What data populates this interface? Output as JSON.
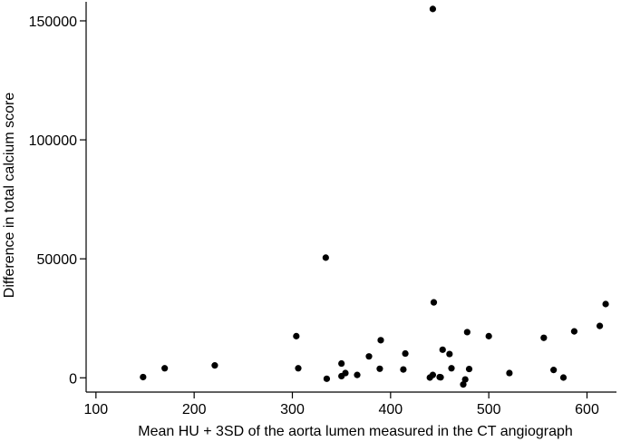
{
  "chart_data": {
    "type": "scatter",
    "title": "",
    "xlabel": "Mean HU + 3SD of the aorta lumen measured in the CT angiograph",
    "ylabel": "Difference in total calcium score",
    "xlim": [
      90,
      630
    ],
    "ylim": [
      -6000,
      158000
    ],
    "xticks": [
      100,
      200,
      300,
      400,
      500,
      600
    ],
    "yticks": [
      0,
      50000,
      100000,
      150000
    ],
    "grid": false,
    "legend": "none",
    "marker_color": "#000000",
    "points": [
      {
        "x": 148,
        "y": 300
      },
      {
        "x": 170,
        "y": 4000
      },
      {
        "x": 221,
        "y": 5200
      },
      {
        "x": 304,
        "y": 17500
      },
      {
        "x": 306,
        "y": 4000
      },
      {
        "x": 334,
        "y": 50500
      },
      {
        "x": 335,
        "y": -400
      },
      {
        "x": 350,
        "y": 6000
      },
      {
        "x": 350,
        "y": 700
      },
      {
        "x": 354,
        "y": 2000
      },
      {
        "x": 366,
        "y": 1200
      },
      {
        "x": 378,
        "y": 9000
      },
      {
        "x": 389,
        "y": 3800
      },
      {
        "x": 390,
        "y": 15800
      },
      {
        "x": 413,
        "y": 3500
      },
      {
        "x": 415,
        "y": 10200
      },
      {
        "x": 440,
        "y": 100
      },
      {
        "x": 443,
        "y": 1200
      },
      {
        "x": 443,
        "y": 155000
      },
      {
        "x": 444,
        "y": 31700
      },
      {
        "x": 450,
        "y": 300
      },
      {
        "x": 451,
        "y": 200
      },
      {
        "x": 453,
        "y": 11800
      },
      {
        "x": 460,
        "y": 10000
      },
      {
        "x": 462,
        "y": 4000
      },
      {
        "x": 474,
        "y": -2800
      },
      {
        "x": 476,
        "y": -700
      },
      {
        "x": 478,
        "y": 19200
      },
      {
        "x": 480,
        "y": 3700
      },
      {
        "x": 500,
        "y": 17500
      },
      {
        "x": 521,
        "y": 2000
      },
      {
        "x": 556,
        "y": 16800
      },
      {
        "x": 566,
        "y": 3300
      },
      {
        "x": 576,
        "y": 100
      },
      {
        "x": 587,
        "y": 19500
      },
      {
        "x": 613,
        "y": 21800
      },
      {
        "x": 619,
        "y": 31000
      }
    ]
  }
}
